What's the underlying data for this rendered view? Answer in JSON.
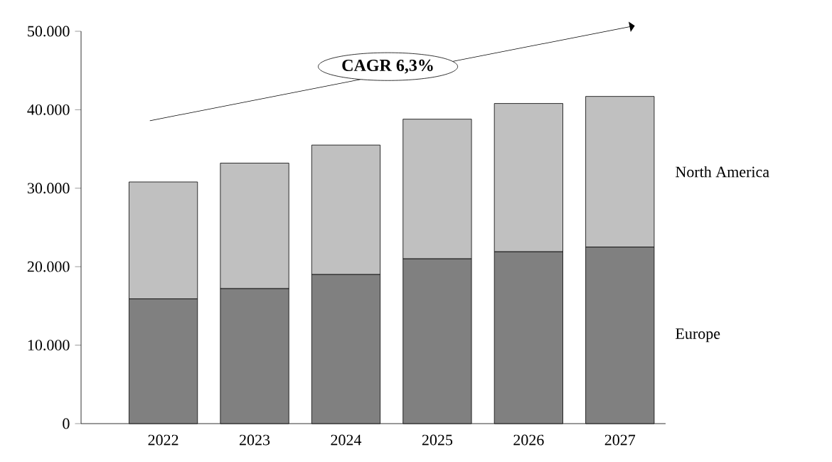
{
  "chart_data": {
    "type": "bar",
    "stacked": true,
    "categories": [
      "2022",
      "2023",
      "2024",
      "2025",
      "2026",
      "2027"
    ],
    "series": [
      {
        "name": "Europe",
        "color": "#808080",
        "values": [
          15900,
          17200,
          19000,
          21000,
          21900,
          22500
        ]
      },
      {
        "name": "North America",
        "color": "#c0c0c0",
        "values": [
          14900,
          16000,
          16500,
          17800,
          18900,
          19200
        ]
      }
    ],
    "ylim": [
      0,
      50000
    ],
    "yticks": [
      0,
      {
        "value": 10000,
        "label": "10.000"
      },
      {
        "value": 20000,
        "label": "20.000"
      },
      {
        "value": 30000,
        "label": "30.000"
      },
      {
        "value": 40000,
        "label": "40.000"
      },
      {
        "value": 50000,
        "label": "50.000"
      }
    ],
    "annotations": [
      "CAGR 6,3%"
    ],
    "grid": false
  }
}
